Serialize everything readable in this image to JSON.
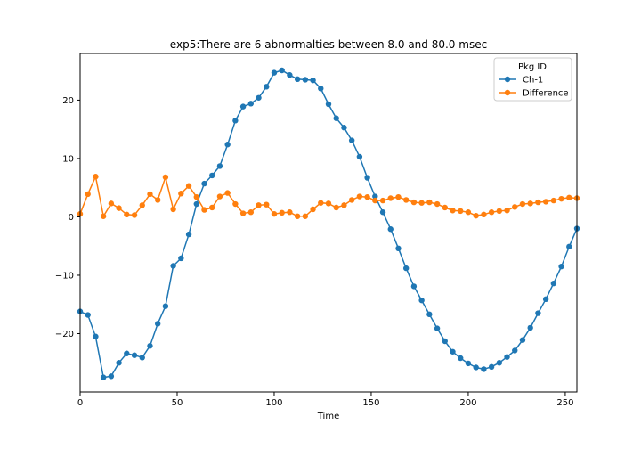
{
  "chart_data": {
    "type": "line",
    "title": "exp5:There are 6 abnormalties between 8.0 and 80.0 msec",
    "xlabel": "Time",
    "ylabel": "",
    "xlim": [
      0,
      256
    ],
    "ylim": [
      -30,
      28
    ],
    "xticks": [
      0,
      50,
      100,
      150,
      200,
      250
    ],
    "yticks": [
      -20,
      -10,
      0,
      10,
      20
    ],
    "grid": false,
    "legend": {
      "title": "Pkg ID",
      "placement": "top-right"
    },
    "x": [
      0,
      4,
      8,
      12,
      16,
      20,
      24,
      28,
      32,
      36,
      40,
      44,
      48,
      52,
      56,
      60,
      64,
      68,
      72,
      76,
      80,
      84,
      88,
      92,
      96,
      100,
      104,
      108,
      112,
      116,
      120,
      124,
      128,
      132,
      136,
      140,
      144,
      148,
      152,
      156,
      160,
      164,
      168,
      172,
      176,
      180,
      184,
      188,
      192,
      196,
      200,
      204,
      208,
      212,
      216,
      220,
      224,
      228,
      232,
      236,
      240,
      244,
      248,
      252,
      256
    ],
    "series": [
      {
        "name": "Ch-1",
        "color": "#1f77b4",
        "values": [
          -16.2,
          -16.8,
          -20.5,
          -27.5,
          -27.3,
          -25.0,
          -23.4,
          -23.7,
          -24.1,
          -22.1,
          -18.3,
          -15.3,
          -8.4,
          -7.1,
          -3.0,
          2.2,
          5.7,
          7.1,
          8.7,
          12.4,
          16.5,
          18.9,
          19.4,
          20.4,
          22.3,
          24.7,
          25.1,
          24.3,
          23.6,
          23.5,
          23.4,
          22.0,
          19.3,
          16.9,
          15.3,
          13.1,
          10.3,
          6.7,
          3.5,
          0.8,
          -2.1,
          -5.4,
          -8.8,
          -11.9,
          -14.3,
          -16.7,
          -19.1,
          -21.3,
          -23.1,
          -24.2,
          -25.1,
          -25.8,
          -26.1,
          -25.7,
          -25.0,
          -24.0,
          -22.9,
          -21.1,
          -19.0,
          -16.5,
          -14.1,
          -11.4,
          -8.5,
          -5.1,
          -2.0
        ]
      },
      {
        "name": "Difference",
        "color": "#ff7f0e",
        "values": [
          0.5,
          3.9,
          6.9,
          0.1,
          2.3,
          1.5,
          0.4,
          0.3,
          2.0,
          3.9,
          2.9,
          6.8,
          1.3,
          4.0,
          5.3,
          3.4,
          1.2,
          1.6,
          3.5,
          4.1,
          2.2,
          0.6,
          0.8,
          2.0,
          2.1,
          0.5,
          0.7,
          0.8,
          0.1,
          0.1,
          1.3,
          2.4,
          2.3,
          1.6,
          2.0,
          2.9,
          3.5,
          3.4,
          2.8,
          2.8,
          3.2,
          3.4,
          2.9,
          2.5,
          2.4,
          2.5,
          2.2,
          1.6,
          1.1,
          1.0,
          0.8,
          0.2,
          0.4,
          0.8,
          1.0,
          1.1,
          1.7,
          2.2,
          2.3,
          2.5,
          2.6,
          2.8,
          3.1,
          3.3,
          3.2
        ]
      }
    ]
  }
}
